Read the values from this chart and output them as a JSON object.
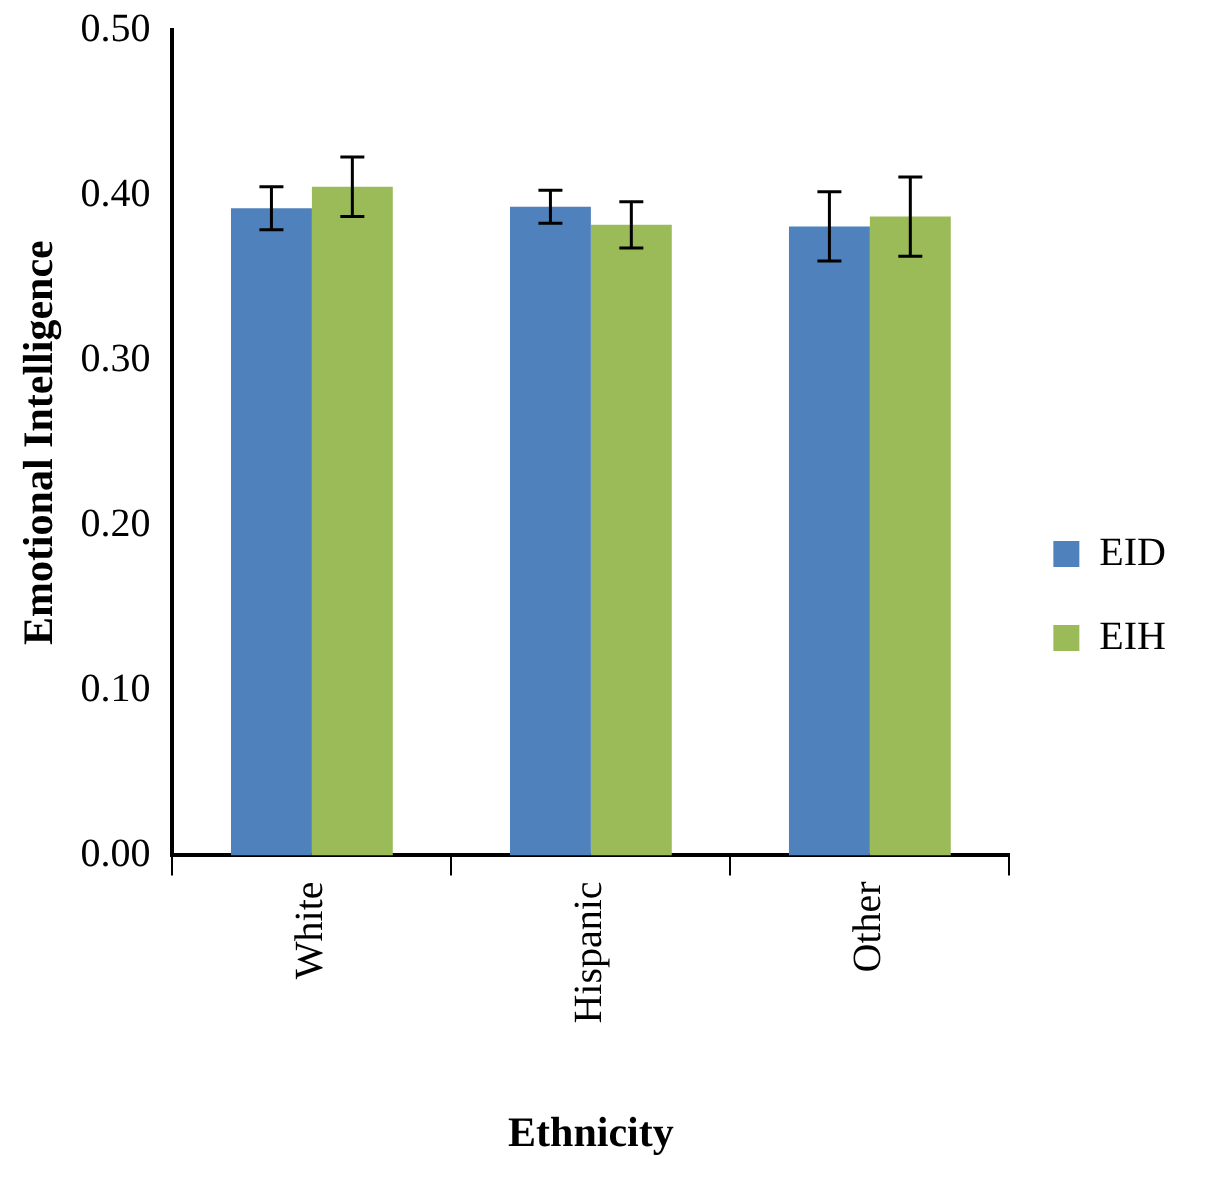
{
  "chart_data": {
    "type": "bar",
    "xlabel": "Ethnicity",
    "ylabel": "Emotional Intelligence",
    "categories": [
      "White",
      "Hispanic",
      "Other"
    ],
    "series": [
      {
        "name": "EID",
        "color": "#4f81bd",
        "values": [
          0.392,
          0.393,
          0.381
        ],
        "errors": [
          0.013,
          0.01,
          0.021
        ]
      },
      {
        "name": "EIH",
        "color": "#9bbb59",
        "values": [
          0.405,
          0.382,
          0.387
        ],
        "errors": [
          0.018,
          0.014,
          0.024
        ]
      }
    ],
    "ylim": [
      0,
      0.5
    ],
    "yticks": [
      {
        "value": 0,
        "label": "0.00"
      },
      {
        "value": 0.1,
        "label": "0.10"
      },
      {
        "value": 0.2,
        "label": "0.20"
      },
      {
        "value": 0.3,
        "label": "0.30"
      },
      {
        "value": 0.4,
        "label": "0.40"
      },
      {
        "value": 0.5,
        "label": "0.50"
      }
    ],
    "legend": "right"
  }
}
